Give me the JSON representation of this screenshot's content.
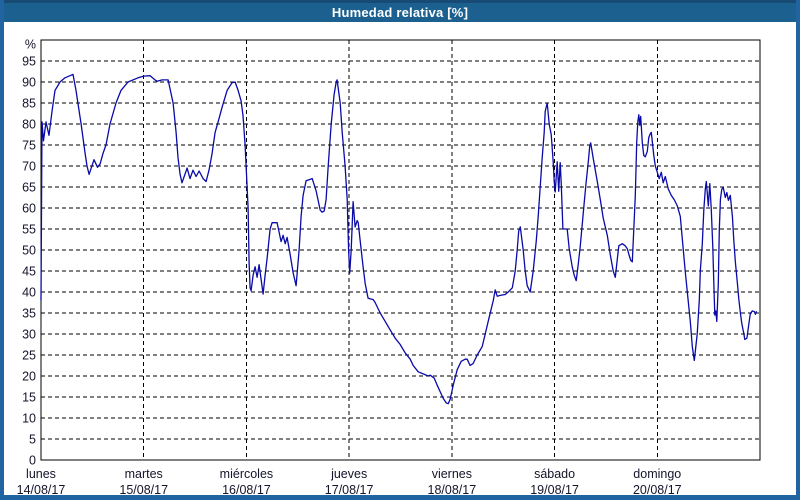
{
  "window": {
    "title": "Humedad relativa [%]"
  },
  "colors": {
    "frame": "#2065a1",
    "titlebar_bg": "#1b608f",
    "titlebar_text": "#ffffff",
    "line": "#0a0aa8",
    "grid": "#000000",
    "axis": "#000000",
    "label_text": "#14142a",
    "plot_bg": "#ffffff"
  },
  "chart_data": {
    "type": "line",
    "title": "Humedad relativa [%]",
    "ylabel": "%",
    "ylim": [
      0,
      100
    ],
    "yticks": [
      0,
      5,
      10,
      15,
      20,
      25,
      30,
      35,
      40,
      45,
      50,
      55,
      60,
      65,
      70,
      75,
      80,
      85,
      90,
      95
    ],
    "grid": "dashed",
    "legend": "none",
    "x_axis": {
      "unit": "days",
      "range_days": 7,
      "days": [
        {
          "name": "lunes",
          "date": "14/08/17"
        },
        {
          "name": "martes",
          "date": "15/08/17"
        },
        {
          "name": "miércoles",
          "date": "16/08/17"
        },
        {
          "name": "jueves",
          "date": "17/08/17"
        },
        {
          "name": "viernes",
          "date": "18/08/17"
        },
        {
          "name": "sábado",
          "date": "19/08/17"
        },
        {
          "name": "domingo",
          "date": "20/08/17"
        }
      ]
    },
    "series": [
      {
        "name": "Humedad relativa",
        "color": "#0a0aa8",
        "points": [
          [
            0.0,
            38
          ],
          [
            0.01,
            80.5
          ],
          [
            0.024,
            76
          ],
          [
            0.049,
            80.5
          ],
          [
            0.078,
            77.3
          ],
          [
            0.107,
            83
          ],
          [
            0.136,
            88
          ],
          [
            0.185,
            90
          ],
          [
            0.234,
            91
          ],
          [
            0.282,
            91.5
          ],
          [
            0.312,
            91.8
          ],
          [
            0.341,
            88
          ],
          [
            0.39,
            80
          ],
          [
            0.429,
            73
          ],
          [
            0.448,
            70
          ],
          [
            0.468,
            68
          ],
          [
            0.516,
            71.5
          ],
          [
            0.55,
            69.7
          ],
          [
            0.575,
            70.5
          ],
          [
            0.604,
            73
          ],
          [
            0.633,
            75
          ],
          [
            0.672,
            80
          ],
          [
            0.73,
            85
          ],
          [
            0.779,
            88
          ],
          [
            0.847,
            90
          ],
          [
            0.945,
            91
          ],
          [
            1.003,
            91.4
          ],
          [
            1.062,
            91.5
          ],
          [
            1.11,
            90.5
          ],
          [
            1.13,
            90.2
          ],
          [
            1.179,
            90.5
          ],
          [
            1.237,
            90.5
          ],
          [
            1.286,
            85
          ],
          [
            1.315,
            78
          ],
          [
            1.334,
            72
          ],
          [
            1.354,
            68
          ],
          [
            1.373,
            66
          ],
          [
            1.422,
            69.5
          ],
          [
            1.451,
            67
          ],
          [
            1.48,
            69
          ],
          [
            1.51,
            67.5
          ],
          [
            1.539,
            68.8
          ],
          [
            1.578,
            67
          ],
          [
            1.607,
            66.3
          ],
          [
            1.636,
            69
          ],
          [
            1.666,
            73
          ],
          [
            1.695,
            78
          ],
          [
            1.724,
            80.5
          ],
          [
            1.763,
            84
          ],
          [
            1.812,
            88
          ],
          [
            1.86,
            89.8
          ],
          [
            1.89,
            90
          ],
          [
            1.919,
            88
          ],
          [
            1.948,
            85.5
          ],
          [
            1.967,
            82
          ],
          [
            1.987,
            75
          ],
          [
            1.997,
            70
          ],
          [
            2.016,
            60
          ],
          [
            2.026,
            47
          ],
          [
            2.036,
            41
          ],
          [
            2.045,
            40.3
          ],
          [
            2.065,
            44
          ],
          [
            2.084,
            46
          ],
          [
            2.104,
            43.5
          ],
          [
            2.123,
            46.5
          ],
          [
            2.143,
            43
          ],
          [
            2.162,
            39.5
          ],
          [
            2.182,
            44
          ],
          [
            2.201,
            48
          ],
          [
            2.23,
            55
          ],
          [
            2.25,
            56.5
          ],
          [
            2.299,
            56.5
          ],
          [
            2.338,
            52
          ],
          [
            2.357,
            53.5
          ],
          [
            2.377,
            51.5
          ],
          [
            2.396,
            53
          ],
          [
            2.425,
            49
          ],
          [
            2.455,
            44.5
          ],
          [
            2.484,
            41.5
          ],
          [
            2.513,
            50
          ],
          [
            2.532,
            58
          ],
          [
            2.552,
            63
          ],
          [
            2.581,
            66.5
          ],
          [
            2.64,
            67
          ],
          [
            2.679,
            64
          ],
          [
            2.718,
            59.5
          ],
          [
            2.737,
            59
          ],
          [
            2.757,
            59.3
          ],
          [
            2.776,
            62
          ],
          [
            2.796,
            70
          ],
          [
            2.825,
            80
          ],
          [
            2.854,
            87
          ],
          [
            2.874,
            90
          ],
          [
            2.883,
            90.5
          ],
          [
            2.913,
            85
          ],
          [
            2.932,
            78
          ],
          [
            2.961,
            70
          ],
          [
            2.981,
            62
          ],
          [
            2.995,
            50
          ],
          [
            3.005,
            44.5
          ],
          [
            3.02,
            50
          ],
          [
            3.039,
            61.5
          ],
          [
            3.058,
            55.5
          ],
          [
            3.078,
            57
          ],
          [
            3.088,
            56.5
          ],
          [
            3.117,
            50
          ],
          [
            3.136,
            46
          ],
          [
            3.156,
            42
          ],
          [
            3.185,
            38.5
          ],
          [
            3.234,
            38.2
          ],
          [
            3.253,
            37.5
          ],
          [
            3.302,
            35
          ],
          [
            3.351,
            33
          ],
          [
            3.399,
            31
          ],
          [
            3.448,
            29
          ],
          [
            3.497,
            27.5
          ],
          [
            3.546,
            25.5
          ],
          [
            3.594,
            24
          ],
          [
            3.624,
            22.5
          ],
          [
            3.672,
            21
          ],
          [
            3.721,
            20.5
          ],
          [
            3.77,
            20
          ],
          [
            3.789,
            20.2
          ],
          [
            3.828,
            19.5
          ],
          [
            3.857,
            17.8
          ],
          [
            3.887,
            16.2
          ],
          [
            3.916,
            14.7
          ],
          [
            3.945,
            13.6
          ],
          [
            3.964,
            13.4
          ],
          [
            3.984,
            14.5
          ],
          [
            4.013,
            17.8
          ],
          [
            4.052,
            21.5
          ],
          [
            4.091,
            23.5
          ],
          [
            4.13,
            24
          ],
          [
            4.149,
            24
          ],
          [
            4.178,
            22.5
          ],
          [
            4.208,
            23
          ],
          [
            4.247,
            25
          ],
          [
            4.295,
            27
          ],
          [
            4.325,
            30
          ],
          [
            4.364,
            34
          ],
          [
            4.403,
            38
          ],
          [
            4.422,
            40.5
          ],
          [
            4.441,
            39
          ],
          [
            4.471,
            39.2
          ],
          [
            4.519,
            39.4
          ],
          [
            4.549,
            40
          ],
          [
            4.588,
            41
          ],
          [
            4.617,
            45
          ],
          [
            4.636,
            50
          ],
          [
            4.651,
            54.5
          ],
          [
            4.666,
            55.5
          ],
          [
            4.695,
            50
          ],
          [
            4.714,
            45
          ],
          [
            4.734,
            41.5
          ],
          [
            4.763,
            40
          ],
          [
            4.792,
            45
          ],
          [
            4.821,
            52
          ],
          [
            4.841,
            58
          ],
          [
            4.86,
            65
          ],
          [
            4.88,
            72
          ],
          [
            4.899,
            78
          ],
          [
            4.909,
            83
          ],
          [
            4.928,
            85
          ],
          [
            4.948,
            80
          ],
          [
            4.967,
            77.5
          ],
          [
            4.987,
            71
          ],
          [
            4.996,
            66.3
          ],
          [
            5.006,
            63.8
          ],
          [
            5.026,
            71
          ],
          [
            5.04,
            64
          ],
          [
            5.055,
            70.8
          ],
          [
            5.065,
            66
          ],
          [
            5.081,
            55
          ],
          [
            5.123,
            55
          ],
          [
            5.142,
            50.3
          ],
          [
            5.172,
            46
          ],
          [
            5.191,
            44
          ],
          [
            5.211,
            42.7
          ],
          [
            5.23,
            46.5
          ],
          [
            5.25,
            51
          ],
          [
            5.269,
            56
          ],
          [
            5.289,
            61.5
          ],
          [
            5.308,
            66.3
          ],
          [
            5.328,
            71
          ],
          [
            5.342,
            74.7
          ],
          [
            5.352,
            75.5
          ],
          [
            5.377,
            71.7
          ],
          [
            5.416,
            66.3
          ],
          [
            5.445,
            62
          ],
          [
            5.474,
            57.5
          ],
          [
            5.513,
            53.5
          ],
          [
            5.542,
            49
          ],
          [
            5.571,
            45
          ],
          [
            5.591,
            43.5
          ],
          [
            5.611,
            47.8
          ],
          [
            5.625,
            51
          ],
          [
            5.659,
            51.5
          ],
          [
            5.688,
            51
          ],
          [
            5.708,
            50.3
          ],
          [
            5.727,
            48.7
          ],
          [
            5.742,
            47.5
          ],
          [
            5.757,
            47.2
          ],
          [
            5.771,
            55
          ],
          [
            5.786,
            63
          ],
          [
            5.8,
            75.5
          ],
          [
            5.81,
            80.5
          ],
          [
            5.82,
            82.2
          ],
          [
            5.83,
            79.7
          ],
          [
            5.839,
            81.8
          ],
          [
            5.854,
            75.5
          ],
          [
            5.869,
            72.5
          ],
          [
            5.883,
            72.2
          ],
          [
            5.903,
            73.5
          ],
          [
            5.917,
            76.8
          ],
          [
            5.932,
            77.7
          ],
          [
            5.942,
            78
          ],
          [
            5.966,
            72.5
          ],
          [
            5.981,
            70
          ],
          [
            6.0,
            68.5
          ],
          [
            6.019,
            67
          ],
          [
            6.039,
            68.5
          ],
          [
            6.058,
            66
          ],
          [
            6.078,
            67.5
          ],
          [
            6.107,
            64.5
          ],
          [
            6.136,
            63
          ],
          [
            6.165,
            62
          ],
          [
            6.195,
            60.5
          ],
          [
            6.224,
            58
          ],
          [
            6.253,
            50
          ],
          [
            6.272,
            45
          ],
          [
            6.292,
            40
          ],
          [
            6.321,
            33
          ],
          [
            6.341,
            27
          ],
          [
            6.36,
            23.7
          ],
          [
            6.389,
            30
          ],
          [
            6.409,
            38
          ],
          [
            6.419,
            45
          ],
          [
            6.438,
            51.5
          ],
          [
            6.453,
            59.5
          ],
          [
            6.467,
            64.5
          ],
          [
            6.477,
            66.3
          ],
          [
            6.497,
            60.5
          ],
          [
            6.511,
            65.8
          ],
          [
            6.526,
            59.5
          ],
          [
            6.54,
            50.7
          ],
          [
            6.55,
            42.3
          ],
          [
            6.56,
            34.5
          ],
          [
            6.57,
            35.5
          ],
          [
            6.579,
            33
          ],
          [
            6.594,
            42
          ],
          [
            6.604,
            54.7
          ],
          [
            6.614,
            62
          ],
          [
            6.628,
            64.5
          ],
          [
            6.643,
            64.8
          ],
          [
            6.662,
            62.5
          ],
          [
            6.677,
            63.7
          ],
          [
            6.692,
            61.8
          ],
          [
            6.711,
            63
          ],
          [
            6.731,
            58
          ],
          [
            6.745,
            52.3
          ],
          [
            6.76,
            47.3
          ],
          [
            6.779,
            42.3
          ],
          [
            6.794,
            38.3
          ],
          [
            6.809,
            35
          ],
          [
            6.823,
            32.5
          ],
          [
            6.843,
            30
          ],
          [
            6.852,
            28.7
          ],
          [
            6.872,
            29
          ],
          [
            6.891,
            32.3
          ],
          [
            6.906,
            34.8
          ],
          [
            6.925,
            35.5
          ],
          [
            6.945,
            35.3
          ],
          [
            6.955,
            34.7
          ],
          [
            6.964,
            35.3
          ]
        ]
      }
    ]
  }
}
